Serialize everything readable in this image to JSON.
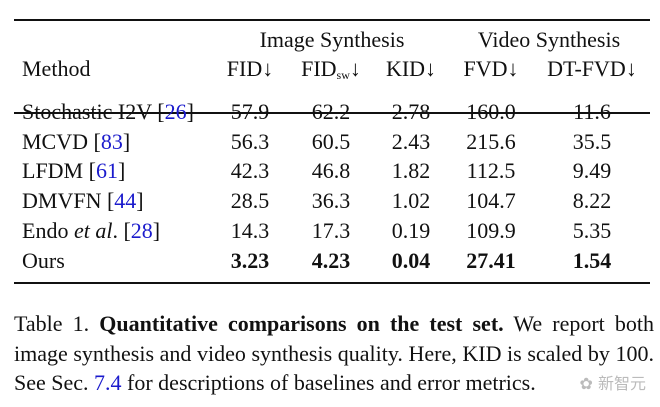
{
  "table": {
    "group_headers": [
      "Image Synthesis",
      "Video Synthesis"
    ],
    "method_header": "Method",
    "columns": [
      {
        "label": "FID",
        "sub": "",
        "arrow": "↓"
      },
      {
        "label": "FID",
        "sub": "sw",
        "arrow": "↓"
      },
      {
        "label": "KID",
        "sub": "",
        "arrow": "↓"
      },
      {
        "label": "FVD",
        "sub": "",
        "arrow": "↓"
      },
      {
        "label": "DT-FVD",
        "sub": "",
        "arrow": "↓"
      }
    ],
    "rows": [
      {
        "method": "Stochastic I2V ",
        "italic": "",
        "after": "",
        "cite": "26",
        "values": [
          "57.9",
          "62.2",
          "2.78",
          "160.0",
          "11.6"
        ],
        "bold": false
      },
      {
        "method": "MCVD ",
        "italic": "",
        "after": "",
        "cite": "83",
        "values": [
          "56.3",
          "60.5",
          "2.43",
          "215.6",
          "35.5"
        ],
        "bold": false
      },
      {
        "method": "LFDM ",
        "italic": "",
        "after": "",
        "cite": "61",
        "values": [
          "42.3",
          "46.8",
          "1.82",
          "112.5",
          "9.49"
        ],
        "bold": false
      },
      {
        "method": "DMVFN ",
        "italic": "",
        "after": "",
        "cite": "44",
        "values": [
          "28.5",
          "36.3",
          "1.02",
          "104.7",
          "8.22"
        ],
        "bold": false
      },
      {
        "method": "Endo ",
        "italic": "et al",
        "after": ". ",
        "cite": "28",
        "values": [
          "14.3",
          "17.3",
          "0.19",
          "109.9",
          "5.35"
        ],
        "bold": false
      },
      {
        "method": "Ours",
        "italic": "",
        "after": "",
        "cite": "",
        "values": [
          "3.23",
          "4.23",
          "0.04",
          "27.41",
          "1.54"
        ],
        "bold": true
      }
    ]
  },
  "caption": {
    "label": "Table 1. ",
    "bold": "Quantitative comparisons on the test set.",
    "text1": " We report both image synthesis and video synthesis quality. Here, KID is scaled by 100. See Sec. ",
    "link": "7.4",
    "text2": " for descriptions of baselines and error metrics."
  },
  "watermark": "新智元",
  "colors": {
    "cite": "#1a1acc"
  }
}
